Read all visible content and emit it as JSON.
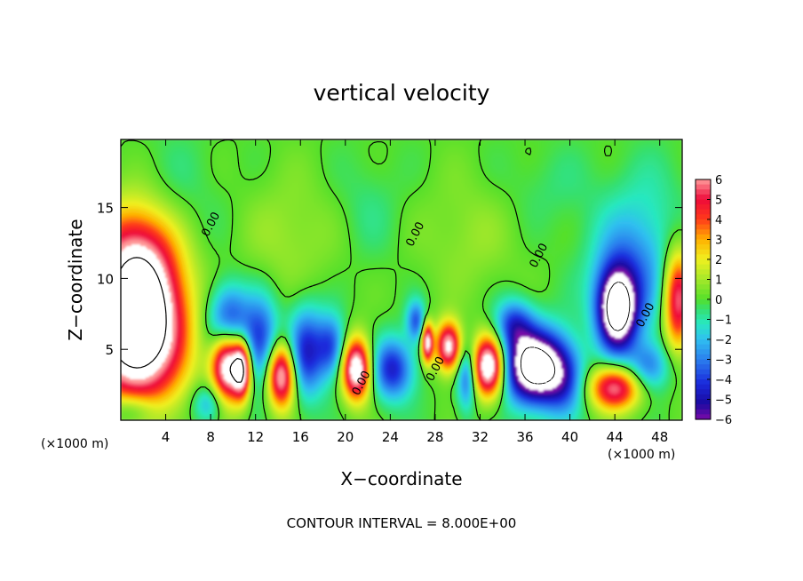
{
  "chart_data": {
    "type": "heatmap",
    "title": "vertical velocity",
    "xlabel": "X−coordinate",
    "ylabel": "Z−coordinate",
    "x_unit_left": "(×1000 m)",
    "x_unit_right": "(×1000 m)",
    "footer": "CONTOUR INTERVAL = 8.000E+00",
    "xlim": [
      0,
      50
    ],
    "ylim": [
      0,
      19.8
    ],
    "xticks": [
      4,
      8,
      12,
      16,
      20,
      24,
      28,
      32,
      36,
      40,
      44,
      48
    ],
    "xtick_labels": [
      "4",
      "8",
      "12",
      "16",
      "20",
      "24",
      "28",
      "32",
      "36",
      "40",
      "44",
      "48"
    ],
    "yticks": [
      5,
      10,
      15
    ],
    "ytick_labels": [
      "5",
      "10",
      "15"
    ],
    "colorbar": {
      "min": -6,
      "max": 6,
      "labels": [
        "6",
        "5",
        "4",
        "3",
        "2",
        "1",
        "0",
        "−1",
        "−2",
        "−3",
        "−4",
        "−5",
        "−6"
      ],
      "stops": [
        {
          "v": -6,
          "c": "#7a0aa8"
        },
        {
          "v": -5.2,
          "c": "#1a0aa0"
        },
        {
          "v": -4.2,
          "c": "#1a2bdc"
        },
        {
          "v": -3,
          "c": "#2b80ee"
        },
        {
          "v": -2,
          "c": "#30c0f0"
        },
        {
          "v": -1.2,
          "c": "#28e8c0"
        },
        {
          "v": -0.5,
          "c": "#35e070"
        },
        {
          "v": 0,
          "c": "#55e02a"
        },
        {
          "v": 1,
          "c": "#a5e82a"
        },
        {
          "v": 2,
          "c": "#f0f020"
        },
        {
          "v": 3,
          "c": "#ffb000"
        },
        {
          "v": 4,
          "c": "#ff3a1a"
        },
        {
          "v": 5,
          "c": "#ee0a3a"
        },
        {
          "v": 6,
          "c": "#ff9a9a"
        }
      ]
    },
    "contour_labels": [
      {
        "x": 8.3,
        "z": 13.7,
        "text": "0.00"
      },
      {
        "x": 21.7,
        "z": 2.5,
        "text": "0.00"
      },
      {
        "x": 26.5,
        "z": 13.0,
        "text": "0.00"
      },
      {
        "x": 28.3,
        "z": 3.5,
        "text": "0.00"
      },
      {
        "x": 37.5,
        "z": 11.5,
        "text": "0.00"
      },
      {
        "x": 47.0,
        "z": 7.3,
        "text": "0.00"
      }
    ],
    "features": [
      {
        "x": 1.5,
        "z": 7.0,
        "sx": 2.8,
        "sz": 3.8,
        "amp": 12
      },
      {
        "x": 9.5,
        "z": 4.0,
        "sx": 1.0,
        "sz": 1.8,
        "amp": 8.5
      },
      {
        "x": 10.8,
        "z": 3.6,
        "sx": 0.55,
        "sz": 1.4,
        "amp": 7
      },
      {
        "x": 14.3,
        "z": 3.2,
        "sx": 0.9,
        "sz": 1.6,
        "amp": 7.5
      },
      {
        "x": 21.0,
        "z": 3.6,
        "sx": 0.9,
        "sz": 1.5,
        "amp": 8
      },
      {
        "x": 27.3,
        "z": 5.5,
        "sx": 0.35,
        "sz": 1.0,
        "amp": 7
      },
      {
        "x": 29.2,
        "z": 5.2,
        "sx": 0.8,
        "sz": 1.2,
        "amp": 7
      },
      {
        "x": 32.8,
        "z": 3.8,
        "sx": 1.0,
        "sz": 1.5,
        "amp": 8.5
      },
      {
        "x": 36.8,
        "z": 3.8,
        "sx": 1.9,
        "sz": 1.8,
        "amp": -9.5
      },
      {
        "x": 44.2,
        "z": 7.8,
        "sx": 1.2,
        "sz": 2.0,
        "amp": -9
      },
      {
        "x": 44.0,
        "z": 2.3,
        "sx": 1.6,
        "sz": 1.1,
        "amp": 6
      },
      {
        "x": 49.6,
        "z": 8.5,
        "sx": 0.9,
        "sz": 2.5,
        "amp": 6
      },
      {
        "x": 9.6,
        "z": 6.8,
        "sx": 1.3,
        "sz": 1.8,
        "amp": -5
      },
      {
        "x": 12.5,
        "z": 5.5,
        "sx": 1.1,
        "sz": 2.2,
        "amp": -4
      },
      {
        "x": 16.5,
        "z": 4.8,
        "sx": 1.2,
        "sz": 2.2,
        "amp": -4.5
      },
      {
        "x": 18.8,
        "z": 5.2,
        "sx": 0.9,
        "sz": 1.5,
        "amp": -3.5
      },
      {
        "x": 24.2,
        "z": 3.6,
        "sx": 1.3,
        "sz": 1.5,
        "amp": -4.5
      },
      {
        "x": 26.3,
        "z": 7.0,
        "sx": 0.6,
        "sz": 1.0,
        "amp": -3.5
      },
      {
        "x": 30.8,
        "z": 3.0,
        "sx": 0.6,
        "sz": 1.6,
        "amp": -3.5
      },
      {
        "x": 35.0,
        "z": 6.8,
        "sx": 1.2,
        "sz": 1.2,
        "amp": -3.5
      },
      {
        "x": 39.5,
        "z": 2.8,
        "sx": 1.3,
        "sz": 1.8,
        "amp": -3
      },
      {
        "x": 45.5,
        "z": 10.5,
        "sx": 2.5,
        "sz": 3.2,
        "amp": -3
      },
      {
        "x": 47.0,
        "z": 3.8,
        "sx": 1.3,
        "sz": 1.2,
        "amp": -3
      },
      {
        "x": 1.0,
        "z": 0.7,
        "sx": 1.6,
        "sz": 0.9,
        "amp": -2.5
      },
      {
        "x": 7.8,
        "z": 1.2,
        "sx": 1.0,
        "sz": 1.0,
        "amp": -2.5
      },
      {
        "x": 1.5,
        "z": 12.5,
        "sx": 2.5,
        "sz": 2.5,
        "amp": 2.5
      },
      {
        "x": 4.5,
        "z": 15.0,
        "sx": 3.0,
        "sz": 3.5,
        "amp": -0.7
      },
      {
        "x": 15.0,
        "z": 13.0,
        "sx": 3.0,
        "sz": 3.0,
        "amp": 0.9
      },
      {
        "x": 31.0,
        "z": 13.0,
        "sx": 3.0,
        "sz": 3.0,
        "amp": 0.8
      },
      {
        "x": 38.0,
        "z": 16.5,
        "sx": 3.0,
        "sz": 2.0,
        "amp": -0.5
      },
      {
        "x": 47.5,
        "z": 16.0,
        "sx": 2.5,
        "sz": 2.5,
        "amp": -0.5
      },
      {
        "x": 22.0,
        "z": 15.0,
        "sx": 2.0,
        "sz": 2.5,
        "amp": -0.6
      }
    ]
  }
}
